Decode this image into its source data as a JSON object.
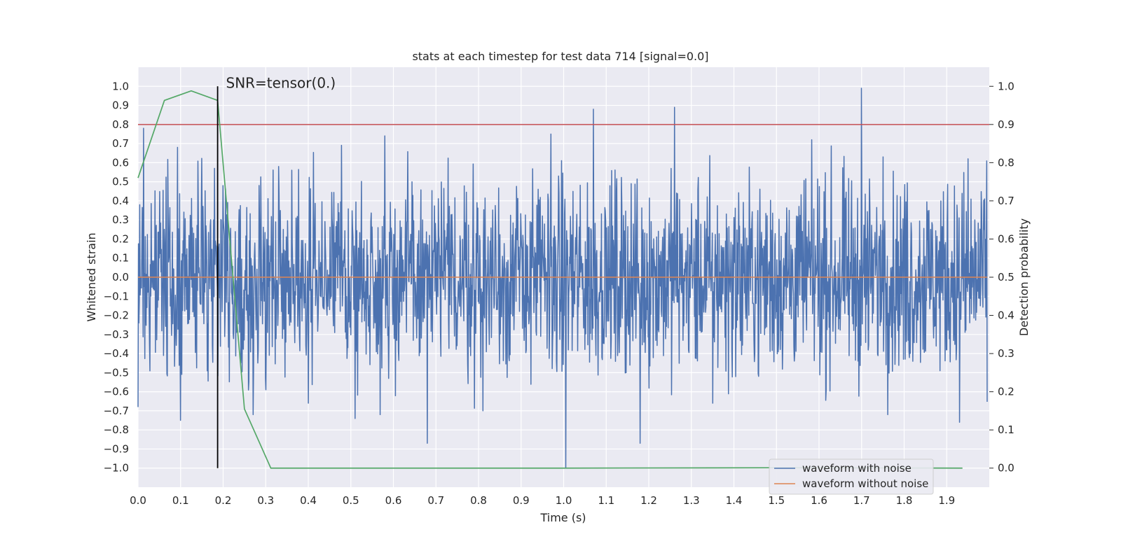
{
  "chart_data": {
    "type": "line",
    "title": "stats at each timestep for test data 714 [signal=0.0]",
    "xlabel": "Time (s)",
    "ylabel": "Whitened strain",
    "y2label": "Detection probability",
    "xlim": [
      0.0,
      2.0
    ],
    "ylim": [
      -1.1,
      1.1
    ],
    "y2lim": [
      -0.05,
      1.05
    ],
    "x_ticks": [
      "0.0",
      "0.1",
      "0.2",
      "0.3",
      "0.4",
      "0.5",
      "0.6",
      "0.7",
      "0.8",
      "0.9",
      "1.0",
      "1.1",
      "1.2",
      "1.3",
      "1.4",
      "1.5",
      "1.6",
      "1.7",
      "1.8",
      "1.9"
    ],
    "y_ticks": [
      "1.0",
      "0.9",
      "0.8",
      "0.7",
      "0.6",
      "0.5",
      "0.4",
      "0.3",
      "0.2",
      "0.1",
      "0.0",
      "−0.1",
      "−0.2",
      "−0.3",
      "−0.4",
      "−0.5",
      "−0.6",
      "−0.7",
      "−0.8",
      "−0.9",
      "−1.0"
    ],
    "y2_ticks": [
      "1.0",
      "0.9",
      "0.8",
      "0.7",
      "0.6",
      "0.5",
      "0.4",
      "0.3",
      "0.2",
      "0.1",
      "0.0"
    ],
    "grid": true,
    "legend_position": "lower-right",
    "series": [
      {
        "name": "waveform with noise",
        "color": "#4c72b0",
        "axis": "left",
        "noise_amplitude": 0.45,
        "extremes": [
          {
            "x": 0.0,
            "y": -0.68
          },
          {
            "x": 0.013,
            "y": 0.78
          },
          {
            "x": 0.1,
            "y": -0.75
          },
          {
            "x": 0.093,
            "y": 0.68
          },
          {
            "x": 0.18,
            "y": 0.57
          },
          {
            "x": 0.2,
            "y": 0.48
          },
          {
            "x": 0.27,
            "y": -0.72
          },
          {
            "x": 0.33,
            "y": 0.58
          },
          {
            "x": 0.4,
            "y": 0.64
          },
          {
            "x": 0.4,
            "y": -0.66
          },
          {
            "x": 0.51,
            "y": -0.74
          },
          {
            "x": 0.58,
            "y": 0.74
          },
          {
            "x": 0.68,
            "y": -0.87
          },
          {
            "x": 0.81,
            "y": -0.7
          },
          {
            "x": 0.97,
            "y": 0.75
          },
          {
            "x": 1.005,
            "y": -1.0
          },
          {
            "x": 1.07,
            "y": 0.88
          },
          {
            "x": 1.18,
            "y": -0.87
          },
          {
            "x": 1.26,
            "y": 0.89
          },
          {
            "x": 1.35,
            "y": -0.66
          },
          {
            "x": 1.7,
            "y": 0.99
          },
          {
            "x": 1.75,
            "y": 0.63
          },
          {
            "x": 1.95,
            "y": 0.62
          },
          {
            "x": 1.93,
            "y": -0.76
          }
        ]
      },
      {
        "name": "waveform without noise",
        "color": "#dd8452",
        "axis": "left",
        "x": [
          0.0,
          1.995
        ],
        "y": [
          0.0,
          0.0
        ]
      },
      {
        "name": "",
        "color": "#55a868",
        "axis": "right",
        "x": [
          0.0,
          0.062,
          0.125,
          0.187,
          0.25,
          0.312,
          0.375,
          0.5,
          1.0,
          1.5,
          1.937
        ],
        "y": [
          0.76,
          0.963,
          0.988,
          0.963,
          0.155,
          0.0,
          0.0,
          0.0,
          0.0,
          0.001,
          0.0
        ]
      }
    ],
    "threshold": {
      "axis": "right",
      "value": 0.9,
      "color": "#c44e52"
    },
    "vline": {
      "x": 0.187,
      "ymin": -1.0,
      "ymax": 1.0,
      "color": "#000000"
    },
    "annotation": {
      "text": "SNR=tensor(0.)",
      "x": 0.2,
      "y": 1.0
    }
  }
}
